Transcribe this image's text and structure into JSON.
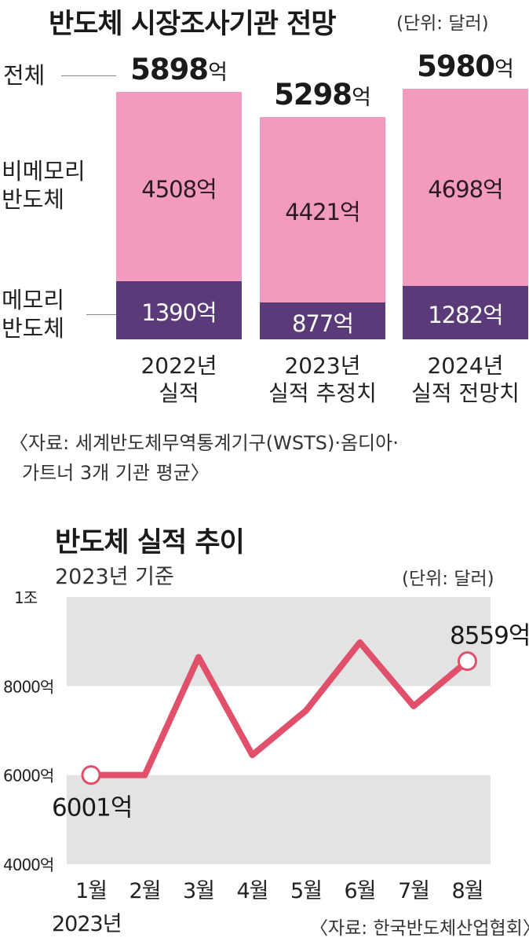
{
  "chart_data": [
    {
      "type": "bar",
      "stacked": true,
      "title": "반도체 시장조사기관 전망",
      "unit": "(단위: 달러)",
      "row_labels": {
        "total": "전체",
        "non_memory": [
          "비메모리",
          "반도체"
        ],
        "memory": [
          "메모리",
          "반도체"
        ]
      },
      "eok": "억",
      "categories": [
        [
          "2022년",
          "실적"
        ],
        [
          "2023년",
          "실적 추정치"
        ],
        [
          "2024년",
          "실적 전망치"
        ]
      ],
      "totals": [
        5898,
        5298,
        5980
      ],
      "series": [
        {
          "name": "메모리 반도체",
          "values": [
            1390,
            877,
            1282
          ],
          "labels": [
            "1390억",
            "877억",
            "1282억"
          ],
          "color": "#5a3a78"
        },
        {
          "name": "비메모리 반도체",
          "values": [
            4508,
            4421,
            4698
          ],
          "labels": [
            "4508억",
            "4421억",
            "4698억"
          ],
          "color": "#f39bbf"
        }
      ],
      "source": [
        "〈자료: 세계반도체무역통계기구(WSTS)·옴디아·",
        "가트너 3개 기관 평균〉"
      ]
    },
    {
      "type": "line",
      "title": "반도체 실적 추이",
      "subtitle": "2023년 기준",
      "unit": "(단위: 달러)",
      "x": [
        "1월",
        "2월",
        "3월",
        "4월",
        "5월",
        "6월",
        "7월",
        "8월"
      ],
      "x_year": "2023년",
      "values": [
        6001,
        6000,
        8650,
        6450,
        7450,
        8980,
        7550,
        8559
      ],
      "annotations": {
        "first": "6001억",
        "last": "8559억"
      },
      "ylim": [
        4000,
        10000
      ],
      "yticks": [
        {
          "value": 10000,
          "label": "1조"
        },
        {
          "value": 8000,
          "label": "8000억"
        },
        {
          "value": 6000,
          "label": "6000억"
        },
        {
          "value": 4000,
          "label": "4000억"
        }
      ],
      "line_color": "#e0506a",
      "band_color": "#e3e3e3",
      "source": "〈자료: 한국반도체산업협회〉"
    }
  ]
}
